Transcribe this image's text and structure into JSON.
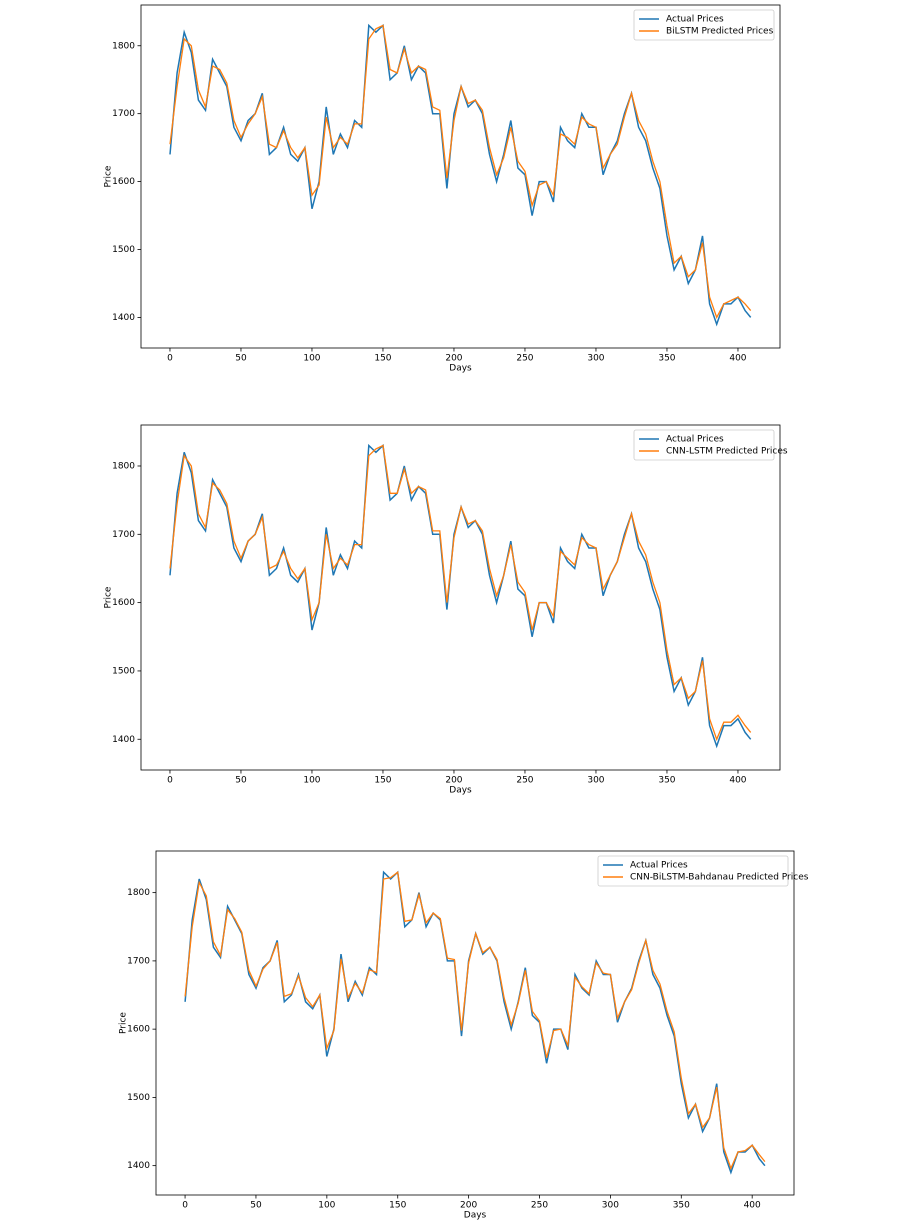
{
  "chart_data": [
    {
      "type": "line",
      "xlabel": "Days",
      "ylabel": "Price",
      "legend": "upper right",
      "x": [
        0,
        5,
        10,
        15,
        20,
        25,
        30,
        35,
        40,
        45,
        50,
        55,
        60,
        65,
        70,
        75,
        80,
        85,
        90,
        95,
        100,
        105,
        110,
        115,
        120,
        125,
        130,
        135,
        140,
        145,
        150,
        155,
        160,
        165,
        170,
        175,
        180,
        185,
        190,
        195,
        200,
        205,
        210,
        215,
        220,
        225,
        230,
        235,
        240,
        245,
        250,
        255,
        260,
        265,
        270,
        275,
        280,
        285,
        290,
        295,
        300,
        305,
        310,
        315,
        320,
        325,
        330,
        335,
        340,
        345,
        350,
        355,
        360,
        365,
        370,
        375,
        380,
        385,
        390,
        395,
        400,
        405,
        409
      ],
      "xlim": [
        -20.4,
        429.6
      ],
      "xticks": [
        0,
        50,
        100,
        150,
        200,
        250,
        300,
        350,
        400
      ],
      "ylim": [
        1355,
        1860
      ],
      "yticks": [
        1400,
        1500,
        1600,
        1700,
        1800
      ],
      "series": [
        {
          "name": "Actual Prices",
          "color": "#1f77b4",
          "values": [
            1640,
            1760,
            1820,
            1790,
            1720,
            1705,
            1780,
            1760,
            1740,
            1680,
            1660,
            1690,
            1700,
            1730,
            1640,
            1650,
            1680,
            1640,
            1630,
            1650,
            1560,
            1600,
            1710,
            1640,
            1670,
            1650,
            1690,
            1680,
            1830,
            1820,
            1830,
            1750,
            1760,
            1800,
            1750,
            1770,
            1760,
            1700,
            1700,
            1590,
            1700,
            1740,
            1710,
            1720,
            1700,
            1640,
            1600,
            1640,
            1690,
            1620,
            1610,
            1550,
            1600,
            1600,
            1570,
            1680,
            1660,
            1650,
            1700,
            1680,
            1680,
            1610,
            1640,
            1660,
            1700,
            1730,
            1680,
            1660,
            1620,
            1590,
            1520,
            1470,
            1490,
            1450,
            1470,
            1520,
            1420,
            1390,
            1420,
            1420,
            1430,
            1410,
            1400
          ]
        },
        {
          "name": "BiLSTM Predicted Prices",
          "color": "#ff7f0e",
          "values": [
            1655,
            1740,
            1810,
            1800,
            1735,
            1710,
            1770,
            1765,
            1745,
            1690,
            1665,
            1685,
            1700,
            1725,
            1655,
            1650,
            1675,
            1650,
            1635,
            1650,
            1580,
            1595,
            1695,
            1650,
            1665,
            1655,
            1685,
            1685,
            1810,
            1825,
            1830,
            1765,
            1760,
            1795,
            1760,
            1770,
            1765,
            1710,
            1705,
            1605,
            1690,
            1740,
            1715,
            1720,
            1705,
            1650,
            1610,
            1635,
            1680,
            1630,
            1615,
            1565,
            1595,
            1600,
            1580,
            1670,
            1665,
            1655,
            1695,
            1685,
            1680,
            1620,
            1640,
            1655,
            1695,
            1730,
            1690,
            1670,
            1630,
            1600,
            1535,
            1480,
            1490,
            1460,
            1470,
            1510,
            1430,
            1400,
            1420,
            1425,
            1430,
            1420,
            1410
          ]
        }
      ]
    },
    {
      "type": "line",
      "xlabel": "Days",
      "ylabel": "Price",
      "legend": "upper right",
      "x": [
        0,
        5,
        10,
        15,
        20,
        25,
        30,
        35,
        40,
        45,
        50,
        55,
        60,
        65,
        70,
        75,
        80,
        85,
        90,
        95,
        100,
        105,
        110,
        115,
        120,
        125,
        130,
        135,
        140,
        145,
        150,
        155,
        160,
        165,
        170,
        175,
        180,
        185,
        190,
        195,
        200,
        205,
        210,
        215,
        220,
        225,
        230,
        235,
        240,
        245,
        250,
        255,
        260,
        265,
        270,
        275,
        280,
        285,
        290,
        295,
        300,
        305,
        310,
        315,
        320,
        325,
        330,
        335,
        340,
        345,
        350,
        355,
        360,
        365,
        370,
        375,
        380,
        385,
        390,
        395,
        400,
        405,
        409
      ],
      "xlim": [
        -20.4,
        429.6
      ],
      "xticks": [
        0,
        50,
        100,
        150,
        200,
        250,
        300,
        350,
        400
      ],
      "ylim": [
        1355,
        1860
      ],
      "yticks": [
        1400,
        1500,
        1600,
        1700,
        1800
      ],
      "series": [
        {
          "name": "Actual Prices",
          "color": "#1f77b4",
          "values": [
            1640,
            1760,
            1820,
            1790,
            1720,
            1705,
            1780,
            1760,
            1740,
            1680,
            1660,
            1690,
            1700,
            1730,
            1640,
            1650,
            1680,
            1640,
            1630,
            1650,
            1560,
            1600,
            1710,
            1640,
            1670,
            1650,
            1690,
            1680,
            1830,
            1820,
            1830,
            1750,
            1760,
            1800,
            1750,
            1770,
            1760,
            1700,
            1700,
            1590,
            1700,
            1740,
            1710,
            1720,
            1700,
            1640,
            1600,
            1640,
            1690,
            1620,
            1610,
            1550,
            1600,
            1600,
            1570,
            1680,
            1660,
            1650,
            1700,
            1680,
            1680,
            1610,
            1640,
            1660,
            1700,
            1730,
            1680,
            1660,
            1620,
            1590,
            1520,
            1470,
            1490,
            1450,
            1470,
            1520,
            1420,
            1390,
            1420,
            1420,
            1430,
            1410,
            1400
          ]
        },
        {
          "name": "CNN-LSTM Predicted Prices",
          "color": "#ff7f0e",
          "values": [
            1650,
            1745,
            1815,
            1800,
            1730,
            1710,
            1775,
            1765,
            1745,
            1690,
            1665,
            1690,
            1700,
            1725,
            1650,
            1655,
            1675,
            1650,
            1635,
            1650,
            1575,
            1600,
            1700,
            1650,
            1665,
            1655,
            1685,
            1685,
            1815,
            1825,
            1830,
            1760,
            1760,
            1795,
            1760,
            1770,
            1765,
            1705,
            1705,
            1600,
            1695,
            1740,
            1715,
            1720,
            1705,
            1650,
            1610,
            1640,
            1685,
            1630,
            1615,
            1560,
            1600,
            1600,
            1580,
            1675,
            1665,
            1655,
            1695,
            1685,
            1680,
            1620,
            1640,
            1660,
            1695,
            1730,
            1690,
            1670,
            1630,
            1600,
            1530,
            1480,
            1490,
            1460,
            1470,
            1515,
            1430,
            1400,
            1425,
            1425,
            1435,
            1420,
            1410
          ]
        }
      ]
    },
    {
      "type": "line",
      "xlabel": "Days",
      "ylabel": "Price",
      "legend": "upper right",
      "x": [
        0,
        5,
        10,
        15,
        20,
        25,
        30,
        35,
        40,
        45,
        50,
        55,
        60,
        65,
        70,
        75,
        80,
        85,
        90,
        95,
        100,
        105,
        110,
        115,
        120,
        125,
        130,
        135,
        140,
        145,
        150,
        155,
        160,
        165,
        170,
        175,
        180,
        185,
        190,
        195,
        200,
        205,
        210,
        215,
        220,
        225,
        230,
        235,
        240,
        245,
        250,
        255,
        260,
        265,
        270,
        275,
        280,
        285,
        290,
        295,
        300,
        305,
        310,
        315,
        320,
        325,
        330,
        335,
        340,
        345,
        350,
        355,
        360,
        365,
        370,
        375,
        380,
        385,
        390,
        395,
        400,
        405,
        409
      ],
      "xlim": [
        -20.5,
        429.5
      ],
      "xticks": [
        0,
        50,
        100,
        150,
        200,
        250,
        300,
        350,
        400
      ],
      "ylim": [
        1357,
        1861
      ],
      "yticks": [
        1400,
        1500,
        1600,
        1700,
        1800
      ],
      "series": [
        {
          "name": "Actual Prices",
          "color": "#1f77b4",
          "values": [
            1640,
            1760,
            1820,
            1790,
            1720,
            1705,
            1780,
            1760,
            1740,
            1680,
            1660,
            1690,
            1700,
            1730,
            1640,
            1650,
            1680,
            1640,
            1630,
            1650,
            1560,
            1600,
            1710,
            1640,
            1670,
            1650,
            1690,
            1680,
            1830,
            1820,
            1830,
            1750,
            1760,
            1800,
            1750,
            1770,
            1760,
            1700,
            1700,
            1590,
            1700,
            1740,
            1710,
            1720,
            1700,
            1640,
            1600,
            1640,
            1690,
            1620,
            1610,
            1550,
            1600,
            1600,
            1570,
            1680,
            1660,
            1650,
            1700,
            1680,
            1680,
            1610,
            1640,
            1660,
            1700,
            1730,
            1680,
            1660,
            1620,
            1590,
            1520,
            1470,
            1490,
            1450,
            1470,
            1520,
            1420,
            1390,
            1420,
            1420,
            1430,
            1410,
            1400
          ]
        },
        {
          "name": "CNN-BiLSTM-Bahdanau Predicted Prices",
          "color": "#ff7f0e",
          "values": [
            1648,
            1750,
            1815,
            1795,
            1728,
            1708,
            1775,
            1762,
            1742,
            1686,
            1663,
            1688,
            1700,
            1727,
            1648,
            1652,
            1678,
            1646,
            1633,
            1650,
            1572,
            1598,
            1703,
            1646,
            1667,
            1653,
            1687,
            1683,
            1820,
            1822,
            1830,
            1758,
            1760,
            1797,
            1756,
            1770,
            1762,
            1704,
            1702,
            1598,
            1697,
            1740,
            1712,
            1720,
            1702,
            1646,
            1606,
            1638,
            1686,
            1626,
            1612,
            1558,
            1598,
            1600,
            1576,
            1676,
            1662,
            1652,
            1697,
            1682,
            1680,
            1616,
            1640,
            1658,
            1697,
            1730,
            1686,
            1666,
            1626,
            1596,
            1528,
            1476,
            1490,
            1456,
            1470,
            1515,
            1426,
            1396,
            1420,
            1422,
            1430,
            1416,
            1406
          ]
        }
      ]
    }
  ]
}
